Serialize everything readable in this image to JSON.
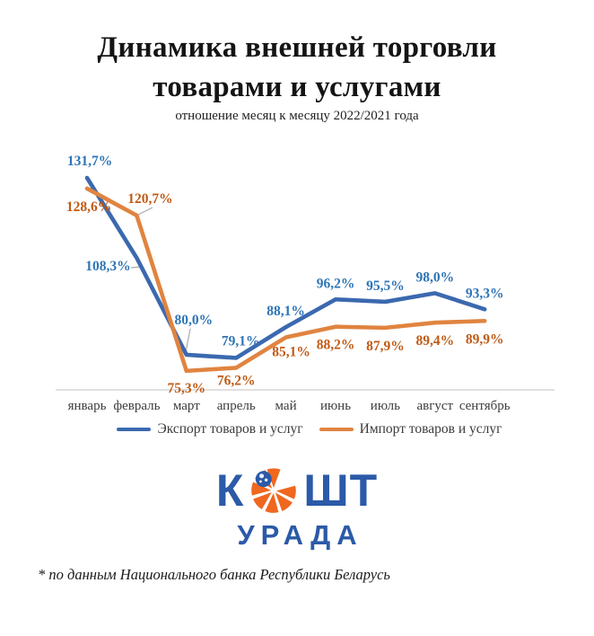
{
  "chart_data": {
    "type": "line",
    "title": "Динамика внешней торговли товарами и услугами",
    "subtitle": "отношение месяц к месяцу 2022/2021 года",
    "categories": [
      "январь",
      "февраль",
      "март",
      "апрель",
      "май",
      "июнь",
      "июль",
      "август",
      "сентябрь"
    ],
    "series": [
      {
        "key": "export",
        "name": "Экспорт товаров и услуг",
        "color": "#3B69AF",
        "label_color": "#2E74B5",
        "values": [
          131.7,
          108.3,
          80.0,
          79.1,
          88.1,
          96.2,
          95.5,
          98.0,
          93.3
        ]
      },
      {
        "key": "import",
        "name": "Импорт товаров и услуг",
        "color": "#E08440",
        "label_color": "#C05A15",
        "values": [
          128.6,
          120.7,
          75.3,
          76.2,
          85.1,
          88.2,
          87.9,
          89.4,
          89.9
        ]
      }
    ],
    "value_suffix": "%",
    "decimal_separator": ",",
    "ylim": [
      70,
      135
    ],
    "gridlines": false,
    "y_axis_visible": false,
    "x_axis_line_color": "#D6D6D6",
    "leader_line_color": "#ABABAB",
    "legend_position": "bottom"
  },
  "logo": {
    "word_left": "К",
    "word_right": "ШТ",
    "word_bottom": "УРАДА",
    "icon": "segmented-orange-coin-with-globe",
    "blue": "#2B5AA8",
    "orange": "#F0671F"
  },
  "footnote": "* по данным Национального банка Республики Беларусь"
}
